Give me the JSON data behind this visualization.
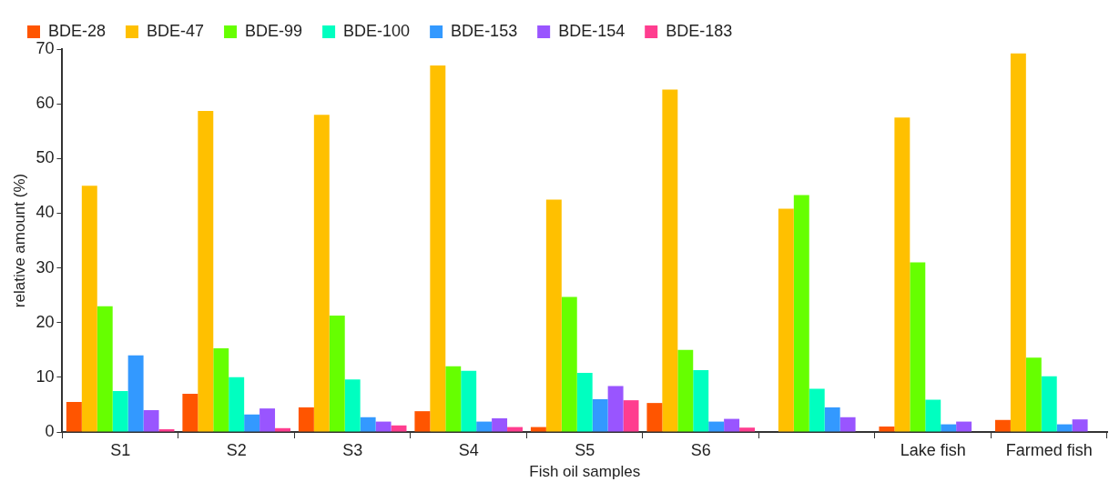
{
  "chart_data": {
    "type": "bar",
    "xlabel": "Fish oil samples",
    "ylabel": "relative amount (%)",
    "categories": [
      "S1",
      "S2",
      "S3",
      "S4",
      "S5",
      "S6",
      null,
      "Lake fish",
      "Farmed fish"
    ],
    "series": [
      {
        "name": "BDE-28",
        "color": "#ff5500",
        "values": [
          5.5,
          7,
          4.5,
          3.8,
          0.9,
          5.3,
          0,
          1,
          2.2
        ]
      },
      {
        "name": "BDE-47",
        "color": "#ffc000",
        "values": [
          45,
          58.7,
          58,
          67,
          42.5,
          62.6,
          40.8,
          57.5,
          69.2
        ]
      },
      {
        "name": "BDE-99",
        "color": "#66ff00",
        "values": [
          23,
          15.3,
          21.3,
          12,
          24.7,
          15,
          43.3,
          31,
          13.6
        ]
      },
      {
        "name": "BDE-100",
        "color": "#00ffc0",
        "values": [
          7.5,
          10,
          9.6,
          11.2,
          10.8,
          11.3,
          7.9,
          5.9,
          10.2
        ]
      },
      {
        "name": "BDE-153",
        "color": "#3399ff",
        "values": [
          14,
          3.2,
          2.7,
          1.9,
          6,
          1.9,
          4.5,
          1.4,
          1.4
        ]
      },
      {
        "name": "BDE-154",
        "color": "#9955ff",
        "values": [
          4,
          4.3,
          1.9,
          2.5,
          8.4,
          2.4,
          2.7,
          1.9,
          2.3
        ]
      },
      {
        "name": "BDE-183",
        "color": "#ff3d8f",
        "values": [
          0.5,
          0.7,
          1.2,
          0.9,
          5.8,
          0.8,
          0,
          null,
          null
        ]
      }
    ],
    "ylim": [
      0,
      70
    ],
    "yticks": [
      0,
      10,
      20,
      30,
      40,
      50,
      60,
      70
    ],
    "grid": false,
    "legend": "top"
  }
}
